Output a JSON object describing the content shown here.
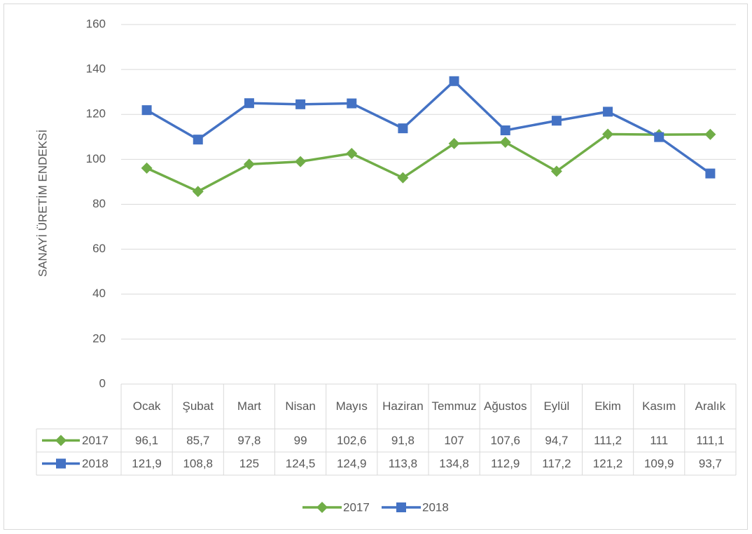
{
  "chart_data": {
    "type": "line",
    "y_axis_label": "SANAYİ ÜRETİM ENDEKSİ",
    "categories": [
      "Ocak",
      "Şubat",
      "Mart",
      "Nisan",
      "Mayıs",
      "Haziran",
      "Temmuz",
      "Ağustos",
      "Eylül",
      "Ekim",
      "Kasım",
      "Aralık"
    ],
    "series": [
      {
        "name": "2017",
        "color": "#70ad47",
        "marker": "diamond",
        "values": [
          96.1,
          85.7,
          97.8,
          99,
          102.6,
          91.8,
          107,
          107.6,
          94.7,
          111.2,
          111,
          111.1
        ],
        "value_labels": [
          "96,1",
          "85,7",
          "97,8",
          "99",
          "102,6",
          "91,8",
          "107",
          "107,6",
          "94,7",
          "111,2",
          "111",
          "111,1"
        ]
      },
      {
        "name": "2018",
        "color": "#4472c4",
        "marker": "square",
        "values": [
          121.9,
          108.8,
          125,
          124.5,
          124.9,
          113.8,
          134.8,
          112.9,
          117.2,
          121.2,
          109.9,
          93.7
        ],
        "value_labels": [
          "121,9",
          "108,8",
          "125",
          "124,5",
          "124,9",
          "113,8",
          "134,8",
          "112,9",
          "117,2",
          "121,2",
          "109,9",
          "93,7"
        ]
      }
    ],
    "ylim": [
      0,
      160
    ],
    "yticks": [
      0,
      20,
      40,
      60,
      80,
      100,
      120,
      140,
      160
    ],
    "grid": true,
    "data_table": true,
    "legend": "bottom"
  }
}
